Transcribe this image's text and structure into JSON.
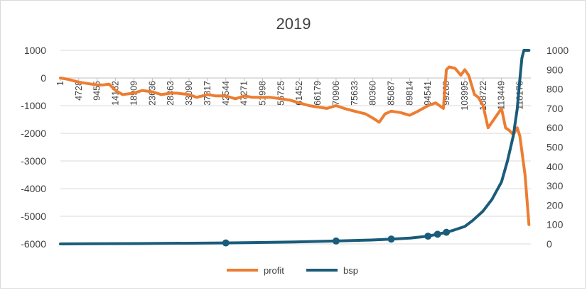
{
  "chart_data": {
    "type": "line",
    "title": "2019",
    "grid": true,
    "legend_position": "bottom",
    "y_left": {
      "min": -6000,
      "max": 1000,
      "ticks": [
        "1000",
        "0",
        "-1000",
        "-2000",
        "-3000",
        "-4000",
        "-5000",
        "-6000"
      ]
    },
    "y_right": {
      "min": 0,
      "max": 1000,
      "ticks": [
        "1000",
        "900",
        "800",
        "700",
        "600",
        "500",
        "400",
        "300",
        "200",
        "100",
        "0"
      ]
    },
    "x_ticks": [
      "1",
      "4728",
      "9455",
      "14182",
      "18909",
      "23636",
      "28363",
      "33090",
      "37817",
      "42544",
      "47271",
      "51998",
      "56725",
      "61452",
      "66179",
      "70906",
      "75633",
      "80360",
      "85087",
      "89814",
      "94541",
      "99268",
      "103995",
      "108722",
      "113449",
      "118176"
    ],
    "x_max": 121000,
    "series": [
      {
        "name": "profit",
        "color": "#ED7D31",
        "axis": "left",
        "x": [
          1,
          2000,
          4728,
          7000,
          9455,
          11000,
          12500,
          14182,
          16000,
          18909,
          21000,
          23636,
          26000,
          28363,
          30000,
          33090,
          35000,
          37817,
          40000,
          42544,
          45000,
          47271,
          49500,
          51998,
          54000,
          56725,
          59000,
          61452,
          64000,
          66179,
          68500,
          70906,
          73000,
          75633,
          78500,
          80360,
          82000,
          83500,
          85087,
          87500,
          89814,
          92000,
          94541,
          96500,
          98500,
          99268,
          100000,
          101500,
          103000,
          103995,
          105000,
          106500,
          107500,
          108722,
          110000,
          111500,
          113449,
          114500,
          115500,
          116500,
          117500,
          118176,
          119500,
          120500
        ],
        "values": [
          0,
          -50,
          -150,
          -200,
          -250,
          -250,
          -220,
          -450,
          -600,
          -550,
          -450,
          -500,
          -600,
          -550,
          -550,
          -600,
          -700,
          -600,
          -650,
          -650,
          -750,
          -650,
          -700,
          -700,
          -700,
          -750,
          -800,
          -900,
          -1000,
          -1050,
          -1100,
          -1000,
          -1100,
          -1200,
          -1300,
          -1450,
          -1600,
          -1300,
          -1200,
          -1250,
          -1350,
          -1200,
          -1000,
          -900,
          -1100,
          300,
          400,
          350,
          100,
          300,
          100,
          -600,
          -700,
          -1000,
          -1800,
          -1500,
          -1100,
          -1800,
          -1900,
          -2050,
          -1800,
          -2100,
          -3500,
          -5300
        ]
      },
      {
        "name": "bsp",
        "color": "#1A5C7A",
        "axis": "right",
        "x": [
          1,
          20000,
          42544,
          60000,
          70906,
          80000,
          85087,
          90000,
          94541,
          97000,
          99268,
          101000,
          103995,
          106000,
          108722,
          111000,
          113449,
          115000,
          116500,
          117500,
          118176,
          118700,
          119200,
          120000,
          120500
        ],
        "values": [
          0,
          2,
          5,
          10,
          15,
          20,
          25,
          30,
          40,
          50,
          60,
          70,
          90,
          120,
          170,
          230,
          320,
          430,
          560,
          700,
          850,
          960,
          1000,
          1000,
          1000
        ],
        "markers_x": [
          42544,
          70906,
          85087,
          94541,
          97000,
          99268
        ]
      }
    ]
  }
}
